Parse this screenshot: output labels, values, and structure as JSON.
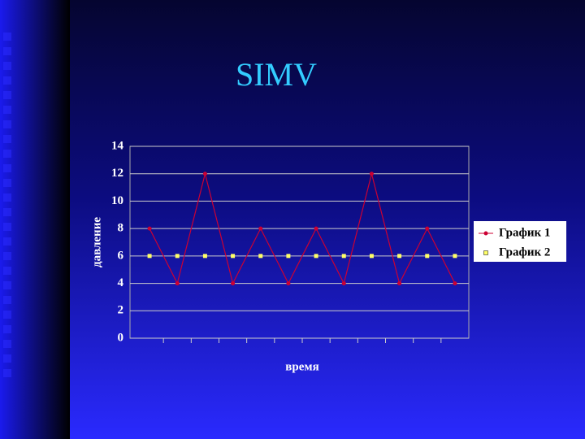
{
  "chart_data": {
    "type": "line",
    "title": "SIMV",
    "x_label": "время",
    "y_label": "давление",
    "categories": [
      null,
      null,
      null,
      null,
      null,
      null,
      null,
      null,
      null,
      null,
      null,
      null
    ],
    "series": [
      {
        "name": "График 1",
        "color": "#cc0033",
        "marker": "dot",
        "line": true,
        "values": [
          8,
          4,
          12,
          4,
          8,
          4,
          8,
          4,
          12,
          4,
          8,
          4
        ]
      },
      {
        "name": "График 2",
        "color": "#ffff66",
        "marker": "square",
        "line": false,
        "values": [
          6,
          6,
          6,
          6,
          6,
          6,
          6,
          6,
          6,
          6,
          6,
          6
        ]
      }
    ],
    "ylim": [
      0,
      14
    ],
    "yticks": [
      0,
      2,
      4,
      6,
      8,
      10,
      12,
      14
    ],
    "grid": true,
    "legend": "right"
  }
}
